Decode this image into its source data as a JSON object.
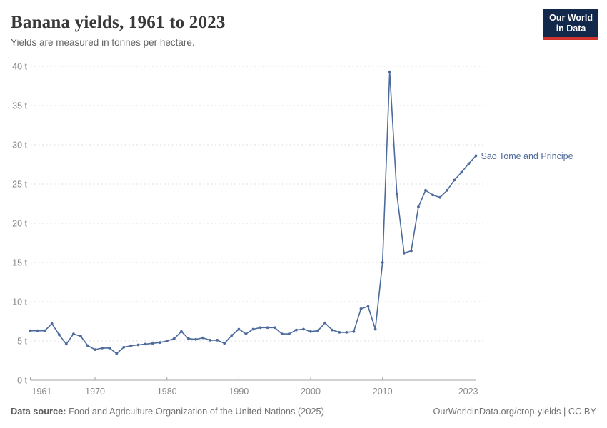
{
  "header": {
    "title": "Banana yields, 1961 to 2023",
    "subtitle": "Yields are measured in tonnes per hectare.",
    "logo": {
      "line1": "Our World",
      "line2": "in Data"
    }
  },
  "chart_data": {
    "type": "line",
    "title": "Banana yields, 1961 to 2023",
    "unit": "tonnes per hectare",
    "xlabel": "",
    "ylabel": "",
    "xlim": [
      1961,
      2023
    ],
    "ylim": [
      0,
      40
    ],
    "grid": "dashed-horizontal",
    "y_ticks": [
      0,
      5,
      10,
      15,
      20,
      25,
      30,
      35,
      40
    ],
    "y_tick_labels": [
      "0 t",
      "5 t",
      "10 t",
      "15 t",
      "20 t",
      "25 t",
      "30 t",
      "35 t",
      "40 t"
    ],
    "x_ticks": [
      1961,
      1970,
      1980,
      1990,
      2000,
      2010,
      2023
    ],
    "x_tick_labels": [
      "1961",
      "1970",
      "1980",
      "1990",
      "2000",
      "2010",
      "2023"
    ],
    "series": [
      {
        "name": "Sao Tome and Principe",
        "color": "#4C6A9C",
        "x": [
          1961,
          1962,
          1963,
          1964,
          1965,
          1966,
          1967,
          1968,
          1969,
          1970,
          1971,
          1972,
          1973,
          1974,
          1975,
          1976,
          1977,
          1978,
          1979,
          1980,
          1981,
          1982,
          1983,
          1984,
          1985,
          1986,
          1987,
          1988,
          1989,
          1990,
          1991,
          1992,
          1993,
          1994,
          1995,
          1996,
          1997,
          1998,
          1999,
          2000,
          2001,
          2002,
          2003,
          2004,
          2005,
          2006,
          2007,
          2008,
          2009,
          2010,
          2011,
          2012,
          2013,
          2014,
          2015,
          2016,
          2017,
          2018,
          2019,
          2020,
          2021,
          2022,
          2023
        ],
        "values": [
          6.3,
          6.3,
          6.3,
          7.2,
          5.8,
          4.6,
          5.9,
          5.6,
          4.4,
          3.9,
          4.1,
          4.1,
          3.4,
          4.2,
          4.4,
          4.5,
          4.6,
          4.7,
          4.8,
          5.0,
          5.3,
          6.2,
          5.3,
          5.2,
          5.4,
          5.1,
          5.1,
          4.7,
          5.7,
          6.5,
          5.9,
          6.5,
          6.7,
          6.7,
          6.7,
          5.9,
          5.9,
          6.4,
          6.5,
          6.2,
          6.3,
          7.3,
          6.4,
          6.1,
          6.1,
          6.2,
          9.1,
          9.4,
          6.5,
          15.0,
          39.3,
          23.7,
          16.2,
          16.5,
          22.1,
          24.2,
          23.6,
          23.3,
          24.2,
          25.5,
          26.5,
          27.6,
          28.6
        ]
      }
    ],
    "end_label": "Sao Tome and Principe",
    "legend_position": "end-of-line"
  },
  "footer": {
    "source_label": "Data source:",
    "source_text": " Food and Agriculture Organization of the United Nations (2025)",
    "link": "OurWorldinData.org/crop-yields | CC BY"
  },
  "colors": {
    "line": "#4C6A9C",
    "gridline": "#dedede",
    "axis": "#a5a5a5",
    "tick_label": "#878787",
    "title": "#383838",
    "subtitle": "#646464",
    "logo_bg": "#12294b",
    "logo_red": "#d0342c"
  }
}
